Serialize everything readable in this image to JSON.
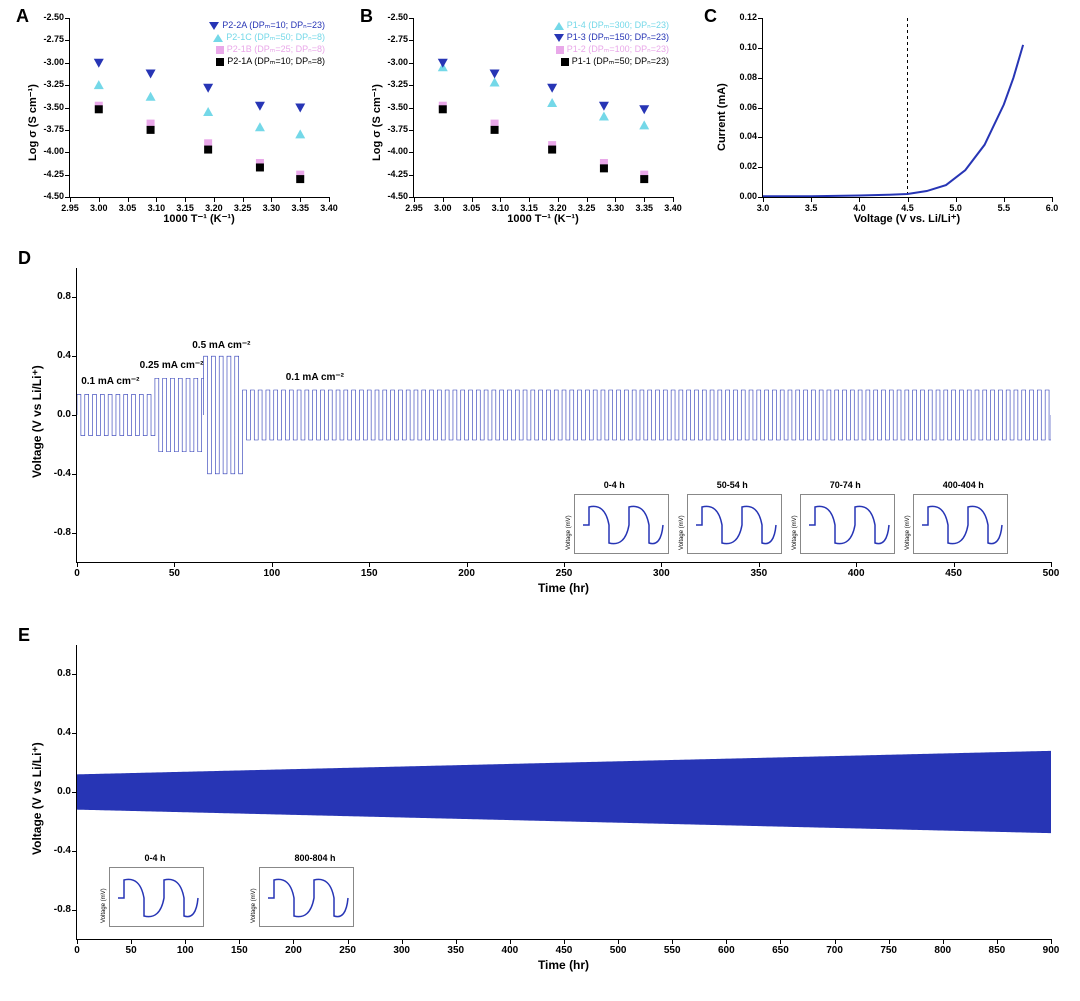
{
  "colors": {
    "blue": "#2735b5",
    "cyan": "#74d8e8",
    "pink": "#e9a8e9",
    "black": "#000000",
    "line_blue": "#2735b5",
    "grid": "#e0e0e0",
    "bg": "#ffffff"
  },
  "panelA": {
    "letter": "A",
    "type": "scatter",
    "ylabel": "Log σ (S cm⁻¹)",
    "xlabel": "1000 T⁻¹ (K⁻¹)",
    "xlim": [
      2.95,
      3.4
    ],
    "xticks": [
      2.95,
      3.0,
      3.05,
      3.1,
      3.15,
      3.2,
      3.25,
      3.3,
      3.35,
      3.4
    ],
    "ylim": [
      -4.5,
      -2.5
    ],
    "yticks": [
      -4.5,
      -4.25,
      -4.0,
      -3.75,
      -3.5,
      -3.25,
      -3.0,
      -2.75,
      -2.5
    ],
    "label_fontsize": 11,
    "tick_fontsize": 9,
    "legend": [
      {
        "marker": "tri-down",
        "color": "#2735b5",
        "text": "P2-2A (DPₘ=10; DPₙ=23)"
      },
      {
        "marker": "tri-up",
        "color": "#74d8e8",
        "text": "P2-1C (DPₘ=50; DPₙ=8)"
      },
      {
        "marker": "sq",
        "color": "#e9a8e9",
        "text": "P2-1B (DPₘ=25; DPₙ=8)"
      },
      {
        "marker": "sq",
        "color": "#000000",
        "text": "P2-1A (DPₘ=10; DPₙ=8)"
      }
    ],
    "series": [
      {
        "marker": "tri-down",
        "color": "#2735b5",
        "x": [
          3.0,
          3.09,
          3.19,
          3.28,
          3.35
        ],
        "y": [
          -3.0,
          -3.12,
          -3.28,
          -3.48,
          -3.5
        ]
      },
      {
        "marker": "tri-up",
        "color": "#74d8e8",
        "x": [
          3.0,
          3.09,
          3.19,
          3.28,
          3.35
        ],
        "y": [
          -3.25,
          -3.38,
          -3.55,
          -3.72,
          -3.8
        ]
      },
      {
        "marker": "sq",
        "color": "#e9a8e9",
        "x": [
          3.0,
          3.09,
          3.19,
          3.28,
          3.35
        ],
        "y": [
          -3.48,
          -3.68,
          -3.9,
          -4.12,
          -4.25
        ]
      },
      {
        "marker": "sq",
        "color": "#000000",
        "x": [
          3.0,
          3.09,
          3.19,
          3.28,
          3.35
        ],
        "y": [
          -3.52,
          -3.75,
          -3.97,
          -4.17,
          -4.3
        ]
      }
    ],
    "molecule_inset": true
  },
  "panelB": {
    "letter": "B",
    "type": "scatter",
    "ylabel": "Log σ (S cm⁻¹)",
    "xlabel": "1000 T⁻¹ (K⁻¹)",
    "xlim": [
      2.95,
      3.4
    ],
    "xticks": [
      2.95,
      3.0,
      3.05,
      3.1,
      3.15,
      3.2,
      3.25,
      3.3,
      3.35,
      3.4
    ],
    "ylim": [
      -4.5,
      -2.5
    ],
    "yticks": [
      -4.5,
      -4.25,
      -4.0,
      -3.75,
      -3.5,
      -3.25,
      -3.0,
      -2.75,
      -2.5
    ],
    "label_fontsize": 11,
    "tick_fontsize": 9,
    "legend": [
      {
        "marker": "tri-up",
        "color": "#74d8e8",
        "text": "P1-4 (DPₘ=300; DPₙ=23)"
      },
      {
        "marker": "tri-down",
        "color": "#2735b5",
        "text": "P1-3 (DPₘ=150; DPₙ=23)"
      },
      {
        "marker": "sq",
        "color": "#e9a8e9",
        "text": "P1-2 (DPₘ=100; DPₙ=23)"
      },
      {
        "marker": "sq",
        "color": "#000000",
        "text": "P1-1 (DPₘ=50; DPₙ=23)"
      }
    ],
    "series": [
      {
        "marker": "tri-up",
        "color": "#74d8e8",
        "x": [
          3.0,
          3.09,
          3.19,
          3.28,
          3.35
        ],
        "y": [
          -3.05,
          -3.22,
          -3.45,
          -3.6,
          -3.7
        ]
      },
      {
        "marker": "tri-down",
        "color": "#2735b5",
        "x": [
          3.0,
          3.09,
          3.19,
          3.28,
          3.35
        ],
        "y": [
          -3.0,
          -3.12,
          -3.28,
          -3.48,
          -3.52
        ]
      },
      {
        "marker": "sq",
        "color": "#e9a8e9",
        "x": [
          3.0,
          3.09,
          3.19,
          3.28,
          3.35
        ],
        "y": [
          -3.48,
          -3.68,
          -3.92,
          -4.12,
          -4.25
        ]
      },
      {
        "marker": "sq",
        "color": "#000000",
        "x": [
          3.0,
          3.09,
          3.19,
          3.28,
          3.35
        ],
        "y": [
          -3.52,
          -3.75,
          -3.97,
          -4.18,
          -4.3
        ]
      }
    ],
    "molecule_inset": true
  },
  "panelC": {
    "letter": "C",
    "type": "line",
    "ylabel": "Current (mA)",
    "xlabel": "Voltage (V vs. Li/Li⁺)",
    "xlim": [
      3.0,
      6.0
    ],
    "xticks": [
      3.0,
      3.5,
      4.0,
      4.5,
      5.0,
      5.5,
      6.0
    ],
    "ylim": [
      0.0,
      0.12
    ],
    "yticks": [
      0.0,
      0.02,
      0.04,
      0.06,
      0.08,
      0.1,
      0.12
    ],
    "label_fontsize": 11,
    "tick_fontsize": 9,
    "series_color": "#2735b5",
    "line_width": 2,
    "vline_dash": {
      "x": 4.5,
      "color": "#000000"
    },
    "x": [
      3.0,
      3.5,
      4.0,
      4.3,
      4.5,
      4.7,
      4.9,
      5.1,
      5.3,
      5.5,
      5.6,
      5.7
    ],
    "y": [
      0.0005,
      0.0005,
      0.001,
      0.0015,
      0.002,
      0.004,
      0.008,
      0.018,
      0.035,
      0.062,
      0.08,
      0.102
    ]
  },
  "panelD": {
    "letter": "D",
    "type": "cycling",
    "ylabel": "Voltage (V vs Li/Li⁺)",
    "xlabel": "Time (hr)",
    "xlim": [
      0,
      500
    ],
    "xticks": [
      0,
      50,
      100,
      150,
      200,
      250,
      300,
      350,
      400,
      450,
      500
    ],
    "ylim": [
      -1.0,
      1.0
    ],
    "yticks": [
      -0.8,
      -0.4,
      0.0,
      0.4,
      0.8
    ],
    "label_fontsize": 11,
    "tick_fontsize": 10,
    "series_color": "#2735b5",
    "segments": [
      {
        "t0": 0,
        "t1": 40,
        "amp": 0.14,
        "label": "0.1 mA cm⁻²"
      },
      {
        "t0": 40,
        "t1": 65,
        "amp": 0.25,
        "label": "0.25 mA cm⁻²"
      },
      {
        "t0": 65,
        "t1": 85,
        "amp": 0.4,
        "label": "0.5 mA cm⁻²"
      },
      {
        "t0": 85,
        "t1": 500,
        "amp": 0.17,
        "label": "0.1 mA cm⁻²"
      }
    ],
    "insets": [
      {
        "title": "0-4 h"
      },
      {
        "title": "50-54 h"
      },
      {
        "title": "70-74 h"
      },
      {
        "title": "400-404 h"
      }
    ]
  },
  "panelE": {
    "letter": "E",
    "type": "cycling",
    "ylabel": "Voltage (V vs Li/Li⁺)",
    "xlabel": "Time (hr)",
    "xlim": [
      0,
      900
    ],
    "xticks": [
      0,
      50,
      100,
      150,
      200,
      250,
      300,
      350,
      400,
      450,
      500,
      550,
      600,
      650,
      700,
      750,
      800,
      850,
      900
    ],
    "ylim": [
      -1.0,
      1.0
    ],
    "yticks": [
      -0.8,
      -0.4,
      0.0,
      0.4,
      0.8
    ],
    "label_fontsize": 11,
    "tick_fontsize": 10,
    "series_color": "#2735b5",
    "envelope": {
      "amp_start": 0.12,
      "amp_end": 0.28
    },
    "insets": [
      {
        "title": "0-4 h"
      },
      {
        "title": "800-804 h"
      }
    ]
  }
}
